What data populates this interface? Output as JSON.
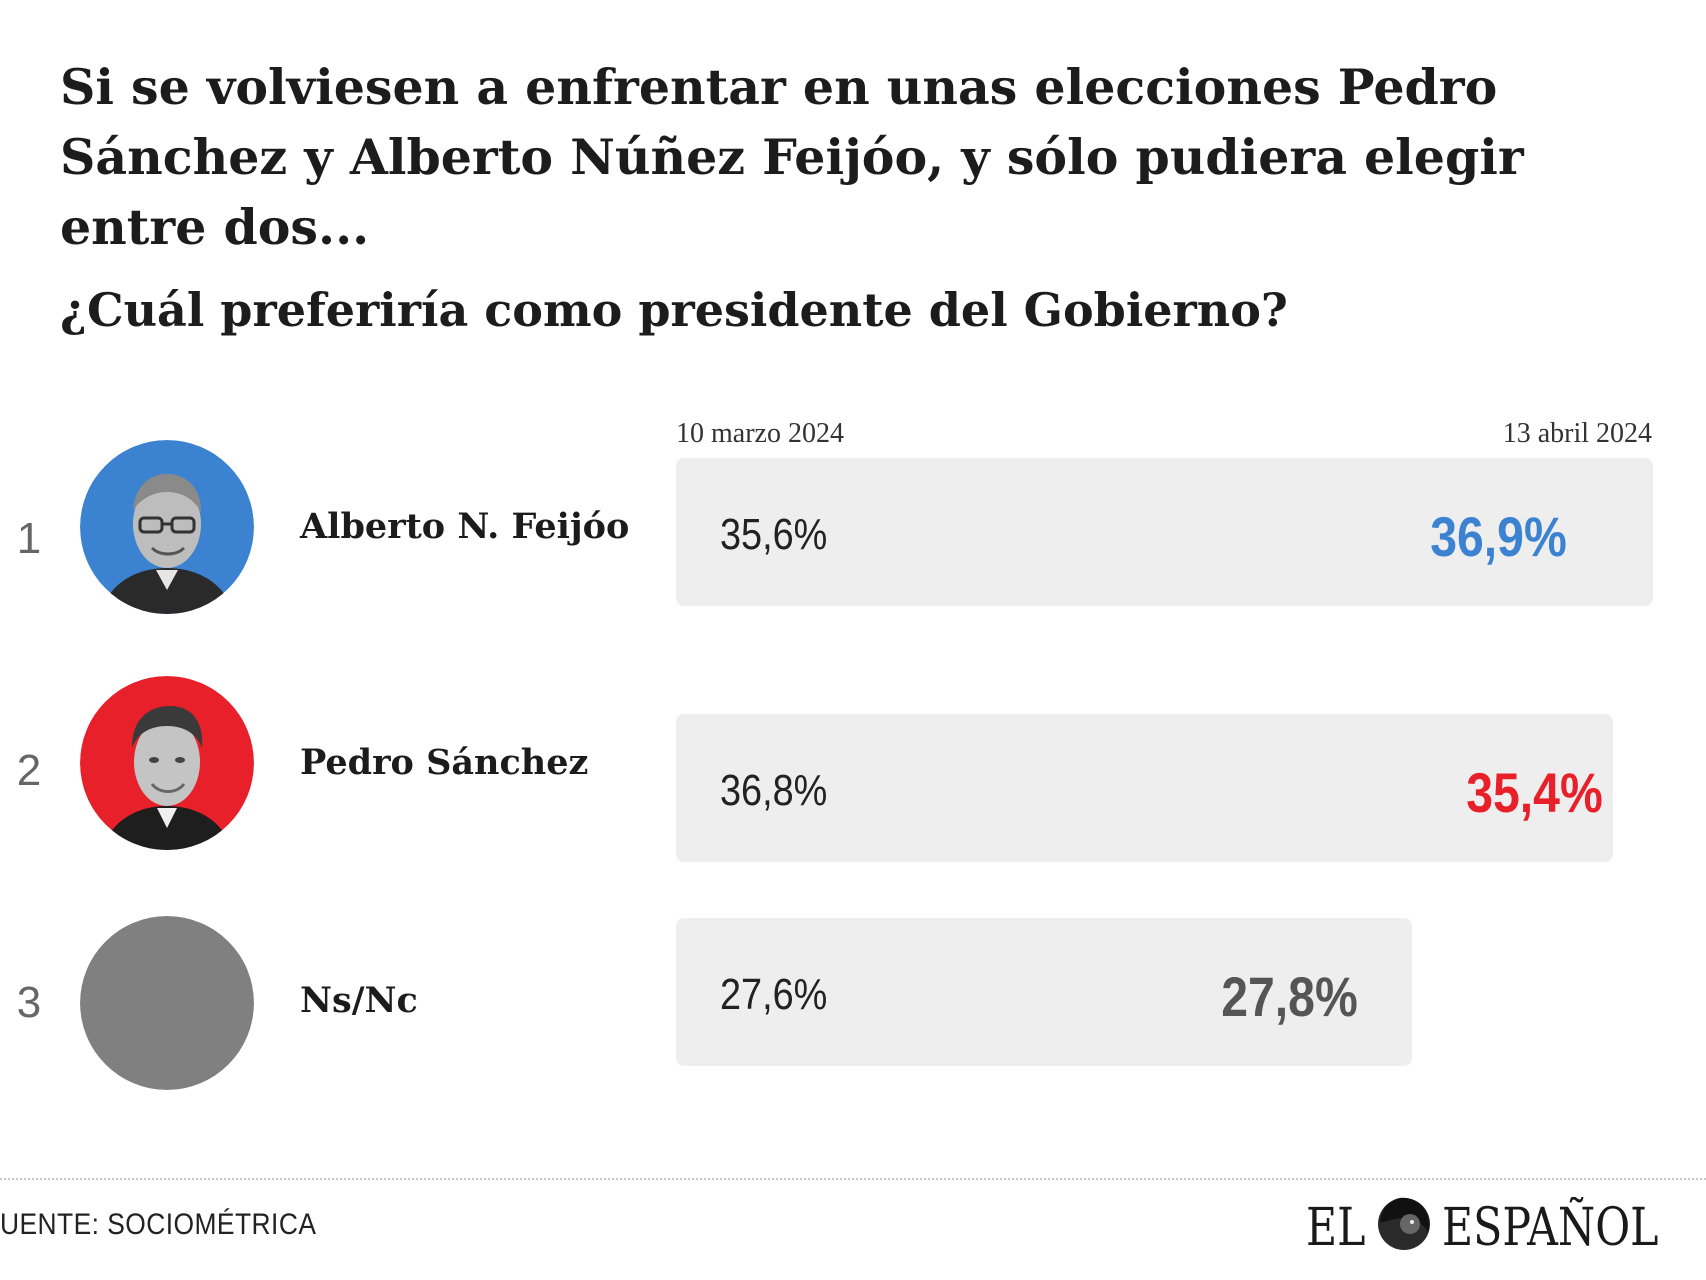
{
  "title": "Si se volviesen a enfrentar en unas elecciones Pedro Sánchez y Alberto Núñez Feijóo, y sólo pudiera elegir entre dos...",
  "subtitle": "¿Cuál preferiría como presidente del Gobierno?",
  "dates": {
    "start": "10 marzo 2024",
    "end": "13 abril 2024"
  },
  "colors": {
    "feijoo": "#3b82d0",
    "sanchez": "#e8202a",
    "nsnc": "#555555",
    "nsnc_avatar": "#808080",
    "bar_bg": "#eeeeee"
  },
  "chart_data": {
    "type": "bar",
    "title": "¿Cuál preferiría como presidente del Gobierno?",
    "series_names": [
      "10 marzo 2024",
      "13 abril 2024"
    ],
    "rows": [
      {
        "rank": "1",
        "name": "Alberto N. Feijóo",
        "start_label": "35,6%",
        "end_label": "36,9%",
        "start": 35.6,
        "end": 36.9
      },
      {
        "rank": "2",
        "name": "Pedro Sánchez",
        "start_label": "36,8%",
        "end_label": "35,4%",
        "start": 36.8,
        "end": 35.4
      },
      {
        "rank": "3",
        "name": "Ns/Nc",
        "start_label": "27,6%",
        "end_label": "27,8%",
        "start": 27.6,
        "end": 27.8
      }
    ]
  },
  "footer": {
    "source": "UENTE: SOCIOMÉTRICA",
    "logo_left": "EL",
    "logo_right": "ESPAÑOL"
  }
}
